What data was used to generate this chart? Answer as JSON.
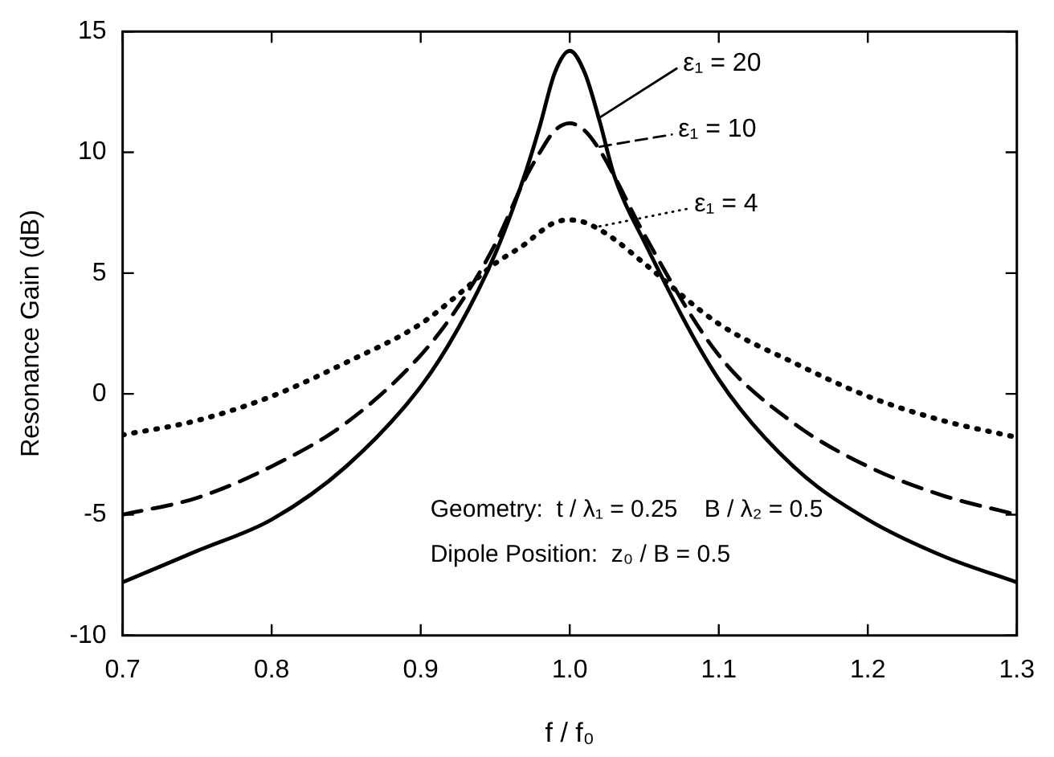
{
  "chart_data": {
    "type": "line",
    "xlabel": "f / f₀",
    "ylabel": "Resonance Gain (dB)",
    "x": [
      0.7,
      0.75,
      0.8,
      0.85,
      0.9,
      0.925,
      0.95,
      0.97,
      0.98,
      0.99,
      1.0,
      1.01,
      1.02,
      1.03,
      1.05,
      1.1,
      1.15,
      1.2,
      1.25,
      1.3
    ],
    "series": [
      {
        "name": "ε₁ = 20",
        "color": "#000000",
        "line_style": "solid",
        "values": [
          -7.8,
          -6.5,
          -5.2,
          -3.0,
          0.3,
          2.7,
          5.8,
          9.1,
          11.1,
          13.3,
          14.2,
          13.3,
          11.3,
          9.0,
          6.3,
          0.6,
          -3.0,
          -5.2,
          -6.7,
          -7.8
        ]
      },
      {
        "name": "ε₁ = 10",
        "color": "#000000",
        "line_style": "dashed",
        "values": [
          -5.0,
          -4.3,
          -3.0,
          -1.2,
          1.6,
          3.6,
          6.2,
          8.9,
          10.0,
          10.9,
          11.2,
          10.9,
          10.1,
          9.0,
          6.6,
          1.6,
          -1.2,
          -3.0,
          -4.2,
          -5.0
        ]
      },
      {
        "name": "ε₁ = 4",
        "color": "#000000",
        "line_style": "dotted",
        "values": [
          -1.7,
          -1.1,
          -0.1,
          1.3,
          2.9,
          4.1,
          5.4,
          6.2,
          6.7,
          7.1,
          7.2,
          7.1,
          6.8,
          6.4,
          5.4,
          2.9,
          1.3,
          -0.1,
          -1.1,
          -1.8
        ]
      }
    ],
    "xlim": [
      0.7,
      1.3
    ],
    "xticks": [
      0.7,
      0.8,
      0.9,
      {
        "value": 1,
        "label": "1.0"
      },
      1.1,
      1.2,
      1.3
    ],
    "ylim": [
      -10,
      15
    ],
    "yticks": [
      -10,
      -5,
      0,
      5,
      10,
      15
    ],
    "annotations": [
      "Geometry:  t / λ₁ = 0.25    B / λ₂ = 0.5",
      "Dipole Position:  z₀ / B = 0.5"
    ],
    "grid": false,
    "legend": "top right",
    "marker": "none"
  }
}
